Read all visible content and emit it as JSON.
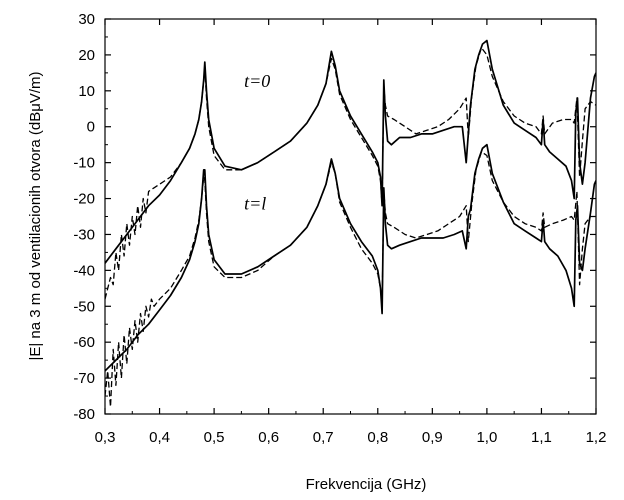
{
  "chart_data": {
    "type": "line",
    "xlabel": "Frekvencija (GHz)",
    "ylabel": "|E| na 3 m od ventilacionih otvora (dBμV/m)",
    "xlim": [
      0.3,
      1.2
    ],
    "ylim": [
      -80,
      30
    ],
    "x_ticks": [
      0.3,
      0.4,
      0.5,
      0.6,
      0.7,
      0.8,
      0.9,
      1.0,
      1.1,
      1.2
    ],
    "x_tick_labels": [
      "0,3",
      "0,4",
      "0,5",
      "0,6",
      "0,7",
      "0,8",
      "0,9",
      "1,0",
      "1,1",
      "1,2"
    ],
    "y_ticks": [
      30,
      20,
      10,
      0,
      -10,
      -20,
      -30,
      -40,
      -50,
      -60,
      -70,
      -80
    ],
    "y_tick_labels": [
      "30",
      "20",
      "10",
      "0",
      "-10",
      "-20",
      "-30",
      "-40",
      "-50",
      "-60",
      "-70",
      "-80"
    ],
    "grid": false,
    "annotations": [
      {
        "text": "t=0",
        "x": 0.555,
        "y": 11
      },
      {
        "text": "t=l",
        "x": 0.555,
        "y": -23
      }
    ],
    "series": [
      {
        "style": "solid",
        "group": "t=0",
        "x": [
          0.3,
          0.32,
          0.34,
          0.36,
          0.38,
          0.4,
          0.42,
          0.44,
          0.455,
          0.465,
          0.472,
          0.477,
          0.481,
          0.483,
          0.486,
          0.49,
          0.5,
          0.52,
          0.55,
          0.58,
          0.61,
          0.64,
          0.67,
          0.69,
          0.705,
          0.715,
          0.722,
          0.73,
          0.75,
          0.77,
          0.79,
          0.8,
          0.805,
          0.808,
          0.811,
          0.814,
          0.818,
          0.825,
          0.84,
          0.86,
          0.88,
          0.9,
          0.92,
          0.94,
          0.955,
          0.962,
          0.966,
          0.97,
          0.978,
          0.985,
          0.992,
          1.0,
          1.01,
          1.03,
          1.05,
          1.07,
          1.09,
          1.1,
          1.103,
          1.106,
          1.115,
          1.13,
          1.145,
          1.155,
          1.16,
          1.163,
          1.166,
          1.17,
          1.175,
          1.18,
          1.19,
          1.197,
          1.2
        ],
        "y": [
          -38,
          -34,
          -30,
          -26,
          -22,
          -19,
          -15,
          -10,
          -6,
          -2,
          2,
          7,
          13,
          18,
          10,
          2,
          -6,
          -11,
          -12,
          -10,
          -7,
          -4,
          1,
          6,
          12,
          21,
          17,
          10,
          3,
          -2,
          -7,
          -10,
          -14,
          -22,
          13,
          3,
          -4,
          -5,
          -3,
          -3,
          -2,
          -2,
          -1,
          0,
          0,
          -10,
          -2,
          6,
          16,
          20,
          23,
          24,
          16,
          6,
          1,
          -1,
          -3,
          -5,
          2,
          -5,
          -7,
          -9,
          -11,
          -15,
          -20,
          4,
          8,
          -10,
          -16,
          -10,
          8,
          14,
          15
        ]
      },
      {
        "style": "dashed",
        "group": "t=0",
        "x": [
          0.3,
          0.31,
          0.315,
          0.32,
          0.325,
          0.33,
          0.335,
          0.34,
          0.345,
          0.35,
          0.355,
          0.36,
          0.365,
          0.37,
          0.375,
          0.38,
          0.39,
          0.4,
          0.42,
          0.44,
          0.455,
          0.465,
          0.472,
          0.477,
          0.481,
          0.483,
          0.486,
          0.49,
          0.5,
          0.52,
          0.55,
          0.58,
          0.61,
          0.64,
          0.67,
          0.69,
          0.705,
          0.715,
          0.722,
          0.73,
          0.75,
          0.77,
          0.79,
          0.8,
          0.805,
          0.808,
          0.811,
          0.814,
          0.818,
          0.83,
          0.85,
          0.87,
          0.89,
          0.91,
          0.93,
          0.95,
          0.962,
          0.966,
          0.972,
          0.98,
          0.99,
          1.0,
          1.01,
          1.03,
          1.05,
          1.07,
          1.09,
          1.1,
          1.103,
          1.106,
          1.12,
          1.14,
          1.155,
          1.16,
          1.165,
          1.17,
          1.175,
          1.18,
          1.19,
          1.2
        ],
        "y": [
          -48,
          -42,
          -44,
          -35,
          -40,
          -30,
          -36,
          -27,
          -33,
          -25,
          -30,
          -22,
          -28,
          -20,
          -24,
          -18,
          -17,
          -16,
          -14,
          -10,
          -6,
          -2,
          2,
          7,
          13,
          16,
          8,
          0,
          -8,
          -12,
          -12,
          -10,
          -7,
          -4,
          1,
          6,
          12,
          19,
          16,
          9,
          2,
          -3,
          -8,
          -11,
          -15,
          -22,
          11,
          6,
          3,
          2,
          0,
          -2,
          -1,
          0,
          2,
          5,
          8,
          -3,
          8,
          17,
          22,
          20,
          14,
          7,
          3,
          1,
          0,
          -2,
          3,
          -2,
          1,
          2,
          2,
          1,
          8,
          -14,
          -4,
          5,
          7,
          6
        ]
      },
      {
        "style": "solid",
        "group": "t=l",
        "x": [
          0.3,
          0.32,
          0.34,
          0.36,
          0.38,
          0.4,
          0.42,
          0.44,
          0.455,
          0.465,
          0.472,
          0.477,
          0.481,
          0.483,
          0.486,
          0.49,
          0.5,
          0.52,
          0.55,
          0.58,
          0.61,
          0.64,
          0.67,
          0.69,
          0.705,
          0.715,
          0.722,
          0.73,
          0.75,
          0.77,
          0.79,
          0.8,
          0.805,
          0.808,
          0.811,
          0.814,
          0.818,
          0.825,
          0.84,
          0.86,
          0.88,
          0.9,
          0.92,
          0.94,
          0.955,
          0.962,
          0.966,
          0.97,
          0.978,
          0.985,
          0.992,
          1.0,
          1.01,
          1.03,
          1.05,
          1.07,
          1.09,
          1.1,
          1.103,
          1.106,
          1.115,
          1.13,
          1.145,
          1.155,
          1.16,
          1.163,
          1.166,
          1.17,
          1.175,
          1.18,
          1.19,
          1.197,
          1.2
        ],
        "y": [
          -68,
          -65,
          -62,
          -58,
          -55,
          -51,
          -47,
          -42,
          -37,
          -32,
          -27,
          -20,
          -12,
          -12,
          -22,
          -30,
          -37,
          -41,
          -41,
          -39,
          -36,
          -33,
          -28,
          -22,
          -16,
          -9,
          -13,
          -20,
          -27,
          -32,
          -36,
          -40,
          -45,
          -52,
          -17,
          -27,
          -33,
          -34,
          -33,
          -32,
          -31,
          -31,
          -31,
          -30,
          -29,
          -34,
          -25,
          -23,
          -13,
          -9,
          -6,
          -5,
          -13,
          -21,
          -27,
          -29,
          -31,
          -32,
          -26,
          -32,
          -34,
          -36,
          -40,
          -45,
          -50,
          -26,
          -22,
          -38,
          -40,
          -34,
          -24,
          -16,
          -15
        ]
      },
      {
        "style": "dashed",
        "group": "t=l",
        "x": [
          0.3,
          0.305,
          0.31,
          0.315,
          0.32,
          0.325,
          0.33,
          0.335,
          0.34,
          0.345,
          0.35,
          0.355,
          0.36,
          0.365,
          0.37,
          0.375,
          0.38,
          0.385,
          0.39,
          0.4,
          0.42,
          0.44,
          0.455,
          0.465,
          0.472,
          0.477,
          0.481,
          0.483,
          0.486,
          0.49,
          0.5,
          0.52,
          0.55,
          0.58,
          0.61,
          0.64,
          0.67,
          0.69,
          0.705,
          0.715,
          0.722,
          0.73,
          0.75,
          0.77,
          0.79,
          0.8,
          0.805,
          0.808,
          0.811,
          0.814,
          0.818,
          0.83,
          0.85,
          0.87,
          0.89,
          0.91,
          0.93,
          0.95,
          0.962,
          0.966,
          0.972,
          0.98,
          0.99,
          1.0,
          1.01,
          1.03,
          1.05,
          1.07,
          1.09,
          1.1,
          1.103,
          1.106,
          1.12,
          1.14,
          1.155,
          1.16,
          1.165,
          1.17,
          1.175,
          1.18,
          1.19,
          1.2
        ],
        "y": [
          -75,
          -68,
          -78,
          -62,
          -72,
          -60,
          -70,
          -58,
          -66,
          -56,
          -62,
          -54,
          -60,
          -52,
          -57,
          -50,
          -53,
          -48,
          -50,
          -48,
          -45,
          -40,
          -36,
          -31,
          -26,
          -20,
          -14,
          -15,
          -24,
          -32,
          -39,
          -42,
          -42,
          -40,
          -36,
          -33,
          -28,
          -22,
          -16,
          -10,
          -13,
          -21,
          -28,
          -34,
          -38,
          -41,
          -45,
          -50,
          -18,
          -24,
          -27,
          -28,
          -30,
          -31,
          -30,
          -29,
          -27,
          -25,
          -22,
          -32,
          -22,
          -12,
          -7,
          -8,
          -15,
          -21,
          -25,
          -27,
          -28,
          -29,
          -24,
          -28,
          -27,
          -26,
          -25,
          -26,
          -18,
          -44,
          -34,
          -27,
          -25,
          -25
        ]
      }
    ]
  }
}
